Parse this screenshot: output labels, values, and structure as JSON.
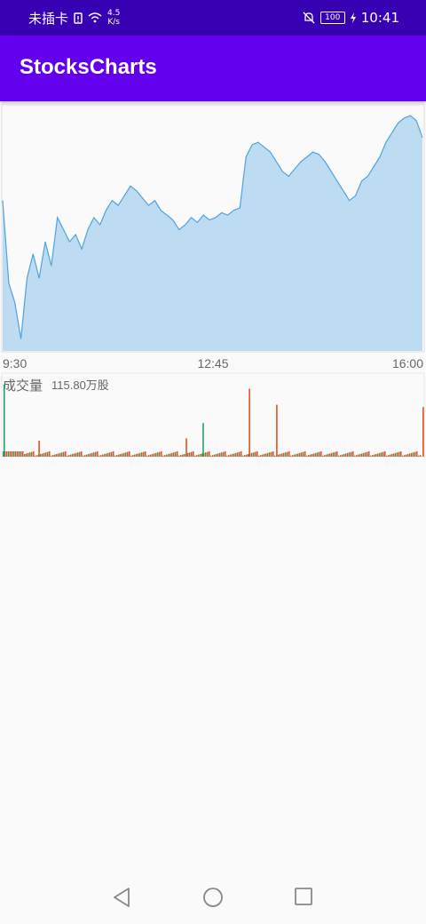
{
  "status_bar": {
    "carrier": "未插卡",
    "net_speed_value": "4.5",
    "net_speed_unit": "K/s",
    "battery": "100",
    "time": "10:41"
  },
  "app_bar": {
    "title": "StocksCharts"
  },
  "chart_data": [
    {
      "type": "area",
      "series": [
        {
          "values": [
            0.62,
            0.28,
            0.2,
            0.05,
            0.3,
            0.4,
            0.3,
            0.45,
            0.35,
            0.55,
            0.5,
            0.45,
            0.48,
            0.42,
            0.5,
            0.55,
            0.52,
            0.58,
            0.62,
            0.6,
            0.64,
            0.68,
            0.66,
            0.63,
            0.6,
            0.62,
            0.58,
            0.56,
            0.54,
            0.5,
            0.52,
            0.55,
            0.53,
            0.56,
            0.54,
            0.55,
            0.57,
            0.56,
            0.58,
            0.59,
            0.8,
            0.85,
            0.86,
            0.84,
            0.82,
            0.78,
            0.74,
            0.72,
            0.75,
            0.78,
            0.8,
            0.82,
            0.81,
            0.78,
            0.74,
            0.7,
            0.66,
            0.62,
            0.64,
            0.7,
            0.72,
            0.76,
            0.8,
            0.86,
            0.9,
            0.94,
            0.96,
            0.97,
            0.95,
            0.88
          ],
          "color": "#4fa3e0",
          "fill": "#bddcf1"
        }
      ],
      "x_ticks": [
        "9:30",
        "12:45",
        "16:00"
      ],
      "grid": false
    },
    {
      "type": "bar",
      "title": "成交量",
      "value_label": "115.80万股",
      "up_color": "#e4511c",
      "down_color": "#1ea56b",
      "spikes": [
        {
          "position": 0.002,
          "height": 0.9,
          "color": "green"
        },
        {
          "position": 0.085,
          "height": 0.2,
          "color": "red"
        },
        {
          "position": 0.435,
          "height": 0.23,
          "color": "red"
        },
        {
          "position": 0.475,
          "height": 0.42,
          "color": "green"
        },
        {
          "position": 0.585,
          "height": 0.85,
          "color": "red"
        },
        {
          "position": 0.65,
          "height": 0.65,
          "color": "red"
        },
        {
          "position": 0.998,
          "height": 0.62,
          "color": "red"
        }
      ]
    }
  ]
}
